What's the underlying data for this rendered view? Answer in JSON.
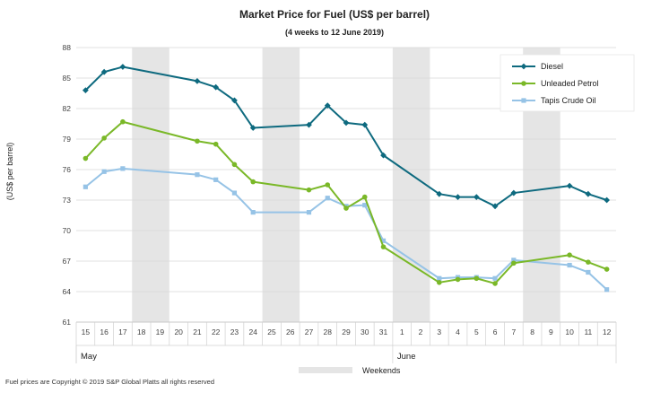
{
  "chart_data": {
    "type": "line",
    "title": "Market Price for Fuel (US$ per barrel)",
    "subtitle": "(4 weeks to 12 June 2019)",
    "ylabel": "(US$ per barrel)",
    "xlabel": "",
    "ylim": [
      61,
      88
    ],
    "yticks": [
      61,
      64,
      67,
      70,
      73,
      76,
      79,
      82,
      85,
      88
    ],
    "categories": [
      "15",
      "16",
      "17",
      "18",
      "19",
      "20",
      "21",
      "22",
      "23",
      "24",
      "25",
      "26",
      "27",
      "28",
      "29",
      "30",
      "31",
      "1",
      "2",
      "3",
      "4",
      "5",
      "6",
      "7",
      "8",
      "9",
      "10",
      "11",
      "12"
    ],
    "month_labels": [
      {
        "label": "May",
        "start_index": 0
      },
      {
        "label": "June",
        "start_index": 17
      }
    ],
    "weekends": [
      [
        3,
        4
      ],
      [
        10,
        11
      ],
      [
        17,
        18
      ],
      [
        24,
        25
      ]
    ],
    "weekend_legend": "Weekends",
    "series": [
      {
        "name": "Diesel",
        "color": "#0e6a7f",
        "marker": "diamond",
        "points": [
          [
            0,
            83.8
          ],
          [
            1,
            85.6
          ],
          [
            2,
            86.1
          ],
          [
            6,
            84.7
          ],
          [
            7,
            84.1
          ],
          [
            8,
            82.8
          ],
          [
            9,
            80.1
          ],
          [
            12,
            80.4
          ],
          [
            13,
            82.3
          ],
          [
            14,
            80.6
          ],
          [
            15,
            80.4
          ],
          [
            16,
            77.4
          ],
          [
            19,
            73.6
          ],
          [
            20,
            73.3
          ],
          [
            21,
            73.3
          ],
          [
            22,
            72.4
          ],
          [
            23,
            73.7
          ],
          [
            26,
            74.4
          ],
          [
            27,
            73.6
          ],
          [
            28,
            73.0
          ]
        ]
      },
      {
        "name": "Unleaded Petrol",
        "color": "#7ab828",
        "marker": "circle",
        "points": [
          [
            0,
            77.1
          ],
          [
            1,
            79.1
          ],
          [
            2,
            80.7
          ],
          [
            6,
            78.8
          ],
          [
            7,
            78.5
          ],
          [
            8,
            76.5
          ],
          [
            9,
            74.8
          ],
          [
            12,
            74.0
          ],
          [
            13,
            74.5
          ],
          [
            14,
            72.2
          ],
          [
            15,
            73.3
          ],
          [
            16,
            68.4
          ],
          [
            19,
            64.9
          ],
          [
            20,
            65.2
          ],
          [
            21,
            65.3
          ],
          [
            22,
            64.8
          ],
          [
            23,
            66.8
          ],
          [
            26,
            67.6
          ],
          [
            27,
            66.9
          ],
          [
            28,
            66.2
          ]
        ]
      },
      {
        "name": "Tapis Crude Oil",
        "color": "#96c3e6",
        "marker": "square",
        "points": [
          [
            0,
            74.3
          ],
          [
            1,
            75.8
          ],
          [
            2,
            76.1
          ],
          [
            6,
            75.5
          ],
          [
            7,
            75.0
          ],
          [
            8,
            73.7
          ],
          [
            9,
            71.8
          ],
          [
            12,
            71.8
          ],
          [
            13,
            73.2
          ],
          [
            14,
            72.4
          ],
          [
            15,
            72.5
          ],
          [
            16,
            69.0
          ],
          [
            19,
            65.3
          ],
          [
            20,
            65.4
          ],
          [
            21,
            65.4
          ],
          [
            22,
            65.3
          ],
          [
            23,
            67.1
          ],
          [
            26,
            66.6
          ],
          [
            27,
            65.9
          ],
          [
            28,
            64.2
          ]
        ]
      }
    ]
  },
  "footer": "Fuel prices are Copyright © 2019 S&P Global Platts all rights reserved"
}
